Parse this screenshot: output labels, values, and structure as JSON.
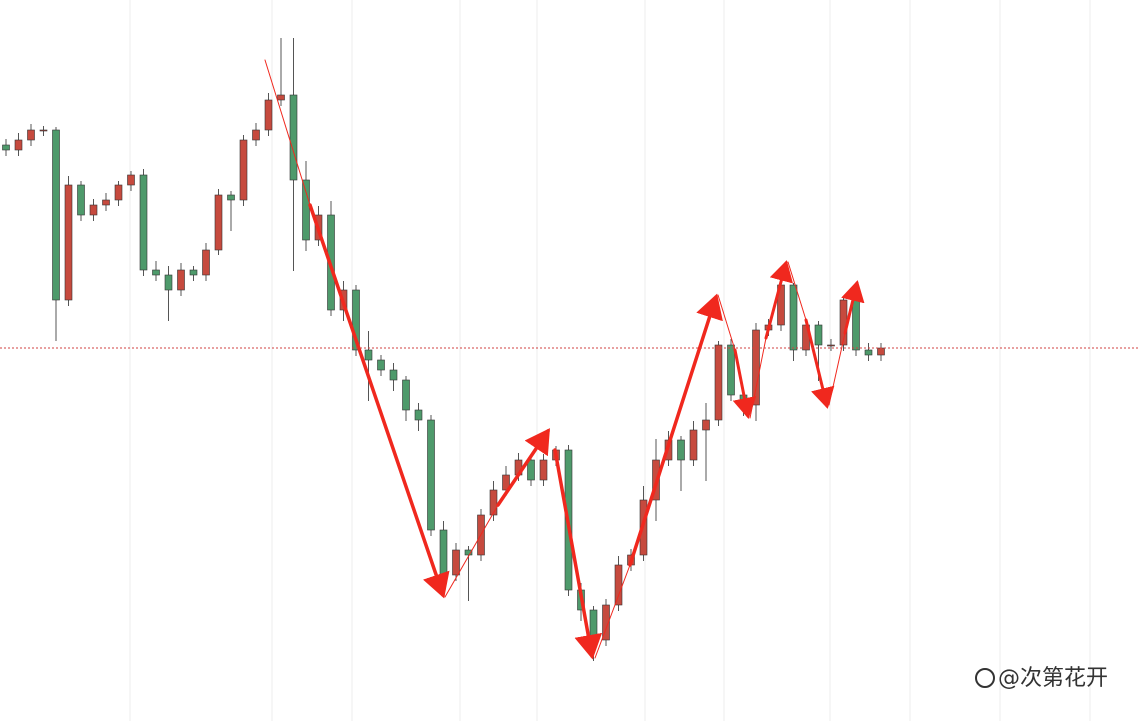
{
  "chart_data": {
    "type": "candlestick",
    "categories": [
      null,
      null,
      null,
      null,
      null,
      null,
      null,
      null,
      null,
      null,
      null,
      null,
      null,
      null,
      null,
      null,
      null,
      null,
      null,
      null,
      null,
      null,
      null,
      null,
      null,
      null,
      null,
      null,
      null,
      null,
      null,
      null,
      null,
      null,
      null,
      null,
      null,
      null,
      null,
      null,
      null,
      null,
      null,
      null,
      null,
      null,
      null,
      null,
      null,
      null,
      null,
      null,
      null,
      null,
      null,
      null,
      null,
      null,
      null,
      null,
      null,
      null,
      null,
      null,
      null,
      null,
      null,
      null,
      null,
      null,
      null
    ],
    "open": [
      576,
      571,
      581,
      591,
      591,
      421,
      536,
      506,
      516,
      521,
      536,
      546,
      451,
      446,
      431,
      451,
      446,
      471,
      526,
      521,
      581,
      591,
      621,
      626,
      541,
      481,
      506,
      411,
      431,
      371,
      361,
      351,
      341,
      311,
      301,
      191,
      146,
      171,
      166,
      206,
      231,
      246,
      261,
      241,
      261,
      271,
      131,
      111,
      81,
      116,
      156,
      166,
      221,
      261,
      281,
      261,
      291,
      301,
      376,
      326,
      316,
      391,
      396,
      436,
      371,
      396,
      376,
      376,
      421,
      371,
      366
    ],
    "high": [
      582,
      588,
      597,
      595,
      594,
      545,
      540,
      522,
      528,
      540,
      550,
      552,
      460,
      455,
      458,
      455,
      478,
      532,
      530,
      586,
      598,
      628,
      683,
      683,
      560,
      515,
      520,
      440,
      436,
      390,
      366,
      358,
      345,
      318,
      306,
      200,
      178,
      175,
      212,
      240,
      255,
      268,
      265,
      267,
      275,
      276,
      138,
      115,
      122,
      165,
      172,
      235,
      282,
      290,
      285,
      300,
      318,
      380,
      382,
      330,
      398,
      402,
      440,
      438,
      402,
      400,
      382,
      425,
      424,
      378,
      378
    ],
    "low": [
      565,
      565,
      575,
      585,
      380,
      415,
      500,
      500,
      510,
      515,
      530,
      445,
      440,
      400,
      425,
      440,
      440,
      466,
      490,
      515,
      575,
      585,
      615,
      450,
      470,
      475,
      405,
      400,
      365,
      320,
      345,
      330,
      300,
      290,
      185,
      135,
      140,
      120,
      160,
      200,
      225,
      240,
      235,
      235,
      255,
      125,
      100,
      60,
      75,
      110,
      150,
      160,
      200,
      255,
      230,
      255,
      240,
      295,
      320,
      305,
      300,
      385,
      390,
      360,
      365,
      340,
      370,
      370,
      365,
      360,
      360
    ],
    "close": [
      571,
      581,
      591,
      591,
      421,
      536,
      506,
      516,
      521,
      536,
      546,
      451,
      446,
      431,
      451,
      446,
      471,
      526,
      521,
      581,
      591,
      621,
      626,
      541,
      481,
      506,
      411,
      431,
      371,
      361,
      351,
      341,
      311,
      301,
      191,
      146,
      171,
      166,
      206,
      231,
      246,
      261,
      241,
      261,
      271,
      131,
      111,
      81,
      116,
      156,
      166,
      221,
      261,
      281,
      261,
      291,
      301,
      376,
      326,
      316,
      391,
      396,
      436,
      371,
      396,
      376,
      376,
      421,
      371,
      366,
      373
    ],
    "up_color": "#c64a3e",
    "down_color": "#4e9a6b",
    "price_line": 373,
    "price_line_color": "#d04040",
    "ylim": [
      0,
      721
    ],
    "watermark": "@次第花开"
  }
}
